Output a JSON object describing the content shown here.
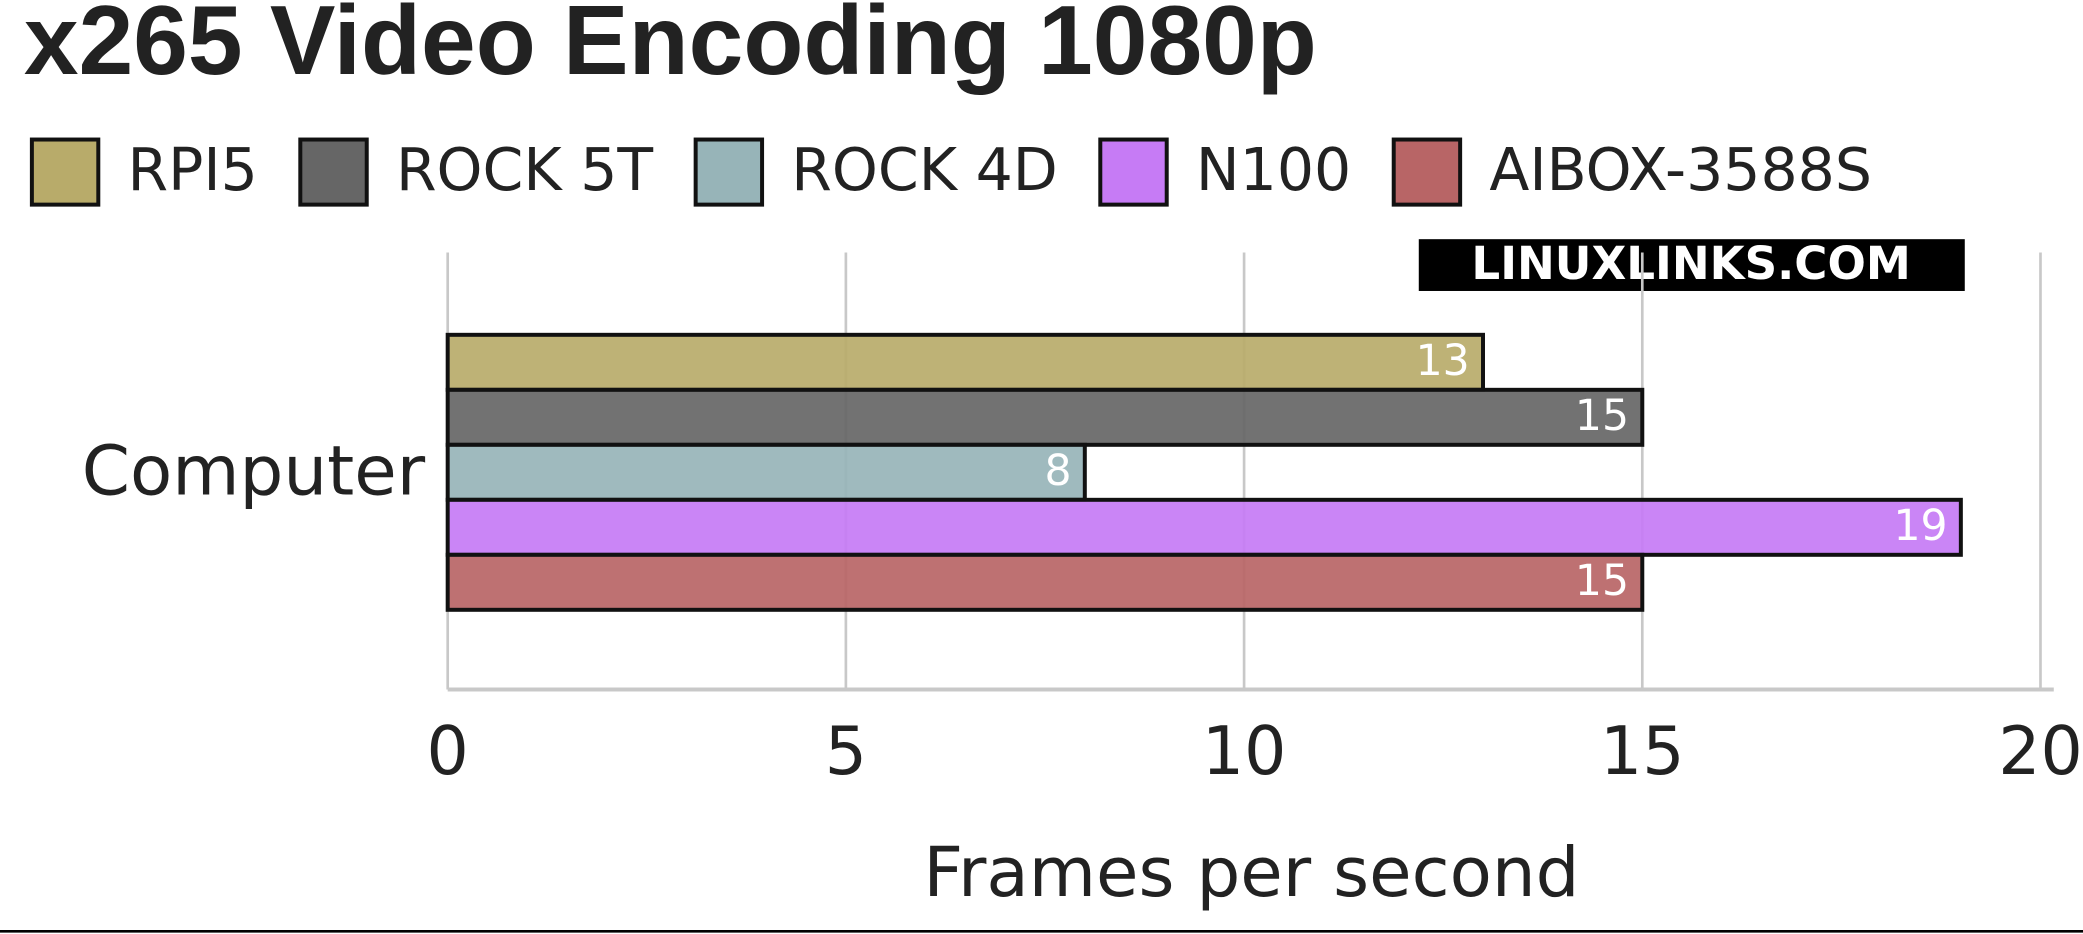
{
  "chart_data": {
    "type": "bar",
    "orientation": "horizontal",
    "title": "x265 Video Encoding 1080p",
    "watermark": "LINUXLINKS.COM",
    "categories": [
      "Computer"
    ],
    "series": [
      {
        "name": "RPI5",
        "color": "#b8ab6a",
        "values": [
          13
        ]
      },
      {
        "name": "ROCK 5T",
        "color": "#666666",
        "values": [
          15
        ]
      },
      {
        "name": "ROCK 4D",
        "color": "#97b4b8",
        "values": [
          8
        ]
      },
      {
        "name": "N100",
        "color": "#c67bf5",
        "values": [
          19
        ]
      },
      {
        "name": "AIBOX-3588S",
        "color": "#b86566",
        "values": [
          15
        ]
      }
    ],
    "xlabel": "Frames per second",
    "xlim": [
      0,
      20
    ],
    "xticks": [
      0,
      5,
      10,
      15,
      20
    ],
    "grid": true,
    "legend": "top"
  }
}
